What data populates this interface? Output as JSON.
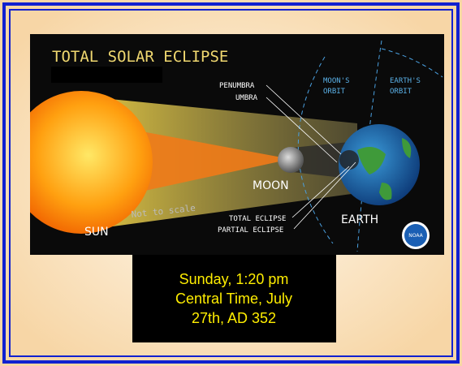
{
  "title": "TOTAL SOLAR ECLIPSE",
  "labels": {
    "penumbra": "PENUMBRA",
    "umbra": "UMBRA",
    "moons_orbit": [
      "MOON'S",
      "ORBIT"
    ],
    "earths_orbit": [
      "EARTH'S",
      "ORBIT"
    ],
    "moon": "MOON",
    "earth": "EARTH",
    "sun": "SUN",
    "scale_note": "Not to scale",
    "total_eclipse": "TOTAL ECLIPSE",
    "partial_eclipse": "PARTIAL ECLIPSE",
    "logo": "NOAA"
  },
  "caption": {
    "lines": [
      "Sunday, 1:20 pm",
      "Central Time, July",
      "27th, AD 352"
    ]
  }
}
